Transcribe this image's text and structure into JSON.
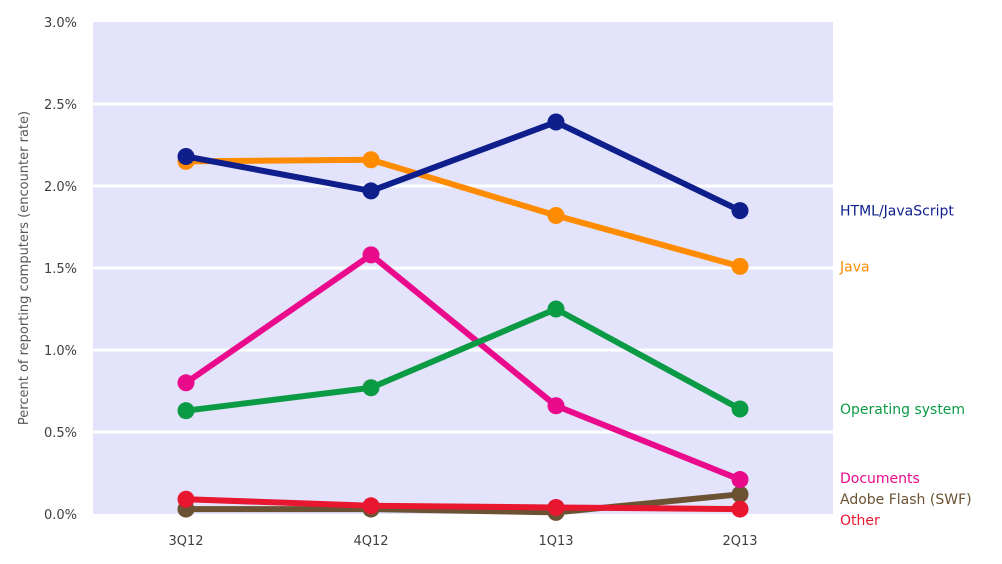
{
  "chart_data": {
    "type": "line",
    "title": "",
    "xlabel": "",
    "ylabel": "Percent of reporting computers (encounter rate)",
    "categories": [
      "3Q12",
      "4Q12",
      "1Q13",
      "2Q13"
    ],
    "ylim": [
      0,
      3.0
    ],
    "yticks": [
      {
        "value": 0.0,
        "label": "0.0%"
      },
      {
        "value": 0.5,
        "label": "0.5%"
      },
      {
        "value": 1.0,
        "label": "1.0%"
      },
      {
        "value": 1.5,
        "label": "1.5%"
      },
      {
        "value": 2.0,
        "label": "2.0%"
      },
      {
        "value": 2.5,
        "label": "2.5%"
      },
      {
        "value": 3.0,
        "label": "3.0%"
      }
    ],
    "grid": true,
    "legend_placement": "right, labels at line ends",
    "plot_background": "#e3e3fb",
    "series": [
      {
        "name": "Adobe Flash (SWF)",
        "color": "#6b5232",
        "values": [
          0.03,
          0.03,
          0.01,
          0.12
        ]
      },
      {
        "name": "Other",
        "color": "#e8162f",
        "values": [
          0.09,
          0.05,
          0.04,
          0.03
        ]
      },
      {
        "name": "Documents",
        "color": "#ea0a8c",
        "values": [
          0.8,
          1.58,
          0.66,
          0.21
        ]
      },
      {
        "name": "Operating system",
        "color": "#0c9b45",
        "values": [
          0.63,
          0.77,
          1.25,
          0.64
        ]
      },
      {
        "name": "Java",
        "color": "#ff8b00",
        "values": [
          2.15,
          2.16,
          1.82,
          1.51
        ]
      },
      {
        "name": "HTML/JavaScript",
        "color": "#0e1f8c",
        "values": [
          2.18,
          1.97,
          2.39,
          1.85
        ]
      }
    ]
  }
}
